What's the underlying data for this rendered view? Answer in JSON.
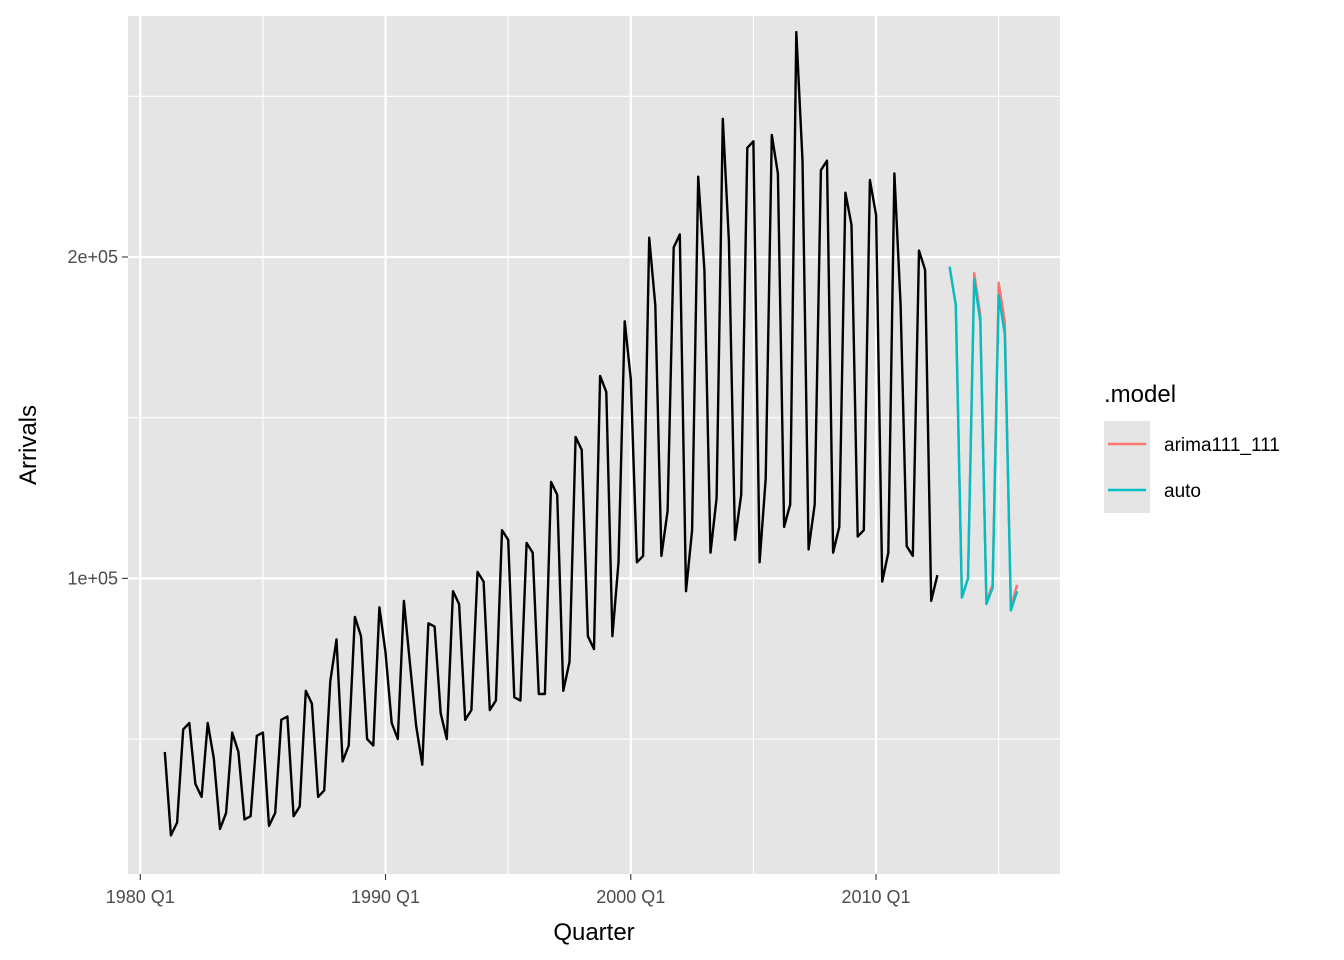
{
  "chart_data": {
    "type": "line",
    "xlabel": "Quarter",
    "ylabel": "Arrivals",
    "x_start_quarter": "1981 Q1",
    "x_ticks": [
      "1980 Q1",
      "1990 Q1",
      "2000 Q1",
      "2010 Q1"
    ],
    "y_ticks": [
      "1e+05",
      "2e+05"
    ],
    "y_tick_values": [
      100000,
      200000
    ],
    "ylim": [
      8000,
      275000
    ],
    "xlim": [
      "1979 Q3",
      "2017 Q3"
    ],
    "grid": true,
    "panel_background": "#e5e5e5",
    "legend": {
      "title": ".model",
      "position": "right",
      "entries": [
        {
          "label": "arima111_111",
          "color": "#f8766d"
        },
        {
          "label": "auto",
          "color": "#00bfc4"
        }
      ]
    },
    "series": [
      {
        "name": "Arrivals",
        "color": "#000000",
        "start": "1981 Q1",
        "values": [
          46000,
          20000,
          24000,
          53000,
          55000,
          36000,
          32000,
          55000,
          44000,
          22000,
          27000,
          52000,
          46000,
          25000,
          26000,
          51000,
          52000,
          23000,
          27000,
          56000,
          57000,
          26000,
          29000,
          65000,
          61000,
          32000,
          34000,
          68000,
          81000,
          43000,
          48000,
          88000,
          82000,
          50000,
          48000,
          91000,
          77000,
          55000,
          50000,
          93000,
          73000,
          54000,
          42000,
          86000,
          85000,
          58000,
          50000,
          96000,
          92000,
          56000,
          59000,
          102000,
          99000,
          59000,
          62000,
          115000,
          112000,
          63000,
          62000,
          111000,
          108000,
          64000,
          64000,
          130000,
          126000,
          65000,
          74000,
          144000,
          140000,
          82000,
          78000,
          163000,
          158000,
          82000,
          105000,
          180000,
          162000,
          105000,
          107000,
          206000,
          185000,
          107000,
          121000,
          203000,
          207000,
          96000,
          115000,
          225000,
          196000,
          108000,
          125000,
          243000,
          205000,
          112000,
          126000,
          234000,
          236000,
          105000,
          131000,
          238000,
          226000,
          116000,
          123000,
          270000,
          230000,
          109000,
          123000,
          227000,
          230000,
          108000,
          116000,
          220000,
          210000,
          113000,
          115000,
          224000,
          213000,
          99000,
          108000,
          226000,
          185000,
          110000,
          107000,
          202000,
          196000,
          93000,
          101000
        ]
      },
      {
        "name": "arima111_111",
        "color": "#f8766d",
        "start": "2013 Q1",
        "values": [
          197000,
          185000,
          94000,
          100000,
          195000,
          182000,
          93000,
          98000,
          192000,
          180000,
          91000,
          98000
        ]
      },
      {
        "name": "auto",
        "color": "#00bfc4",
        "start": "2013 Q1",
        "values": [
          197000,
          185000,
          94000,
          100000,
          193000,
          180000,
          92000,
          97000,
          188000,
          176000,
          90000,
          96000
        ]
      }
    ]
  }
}
